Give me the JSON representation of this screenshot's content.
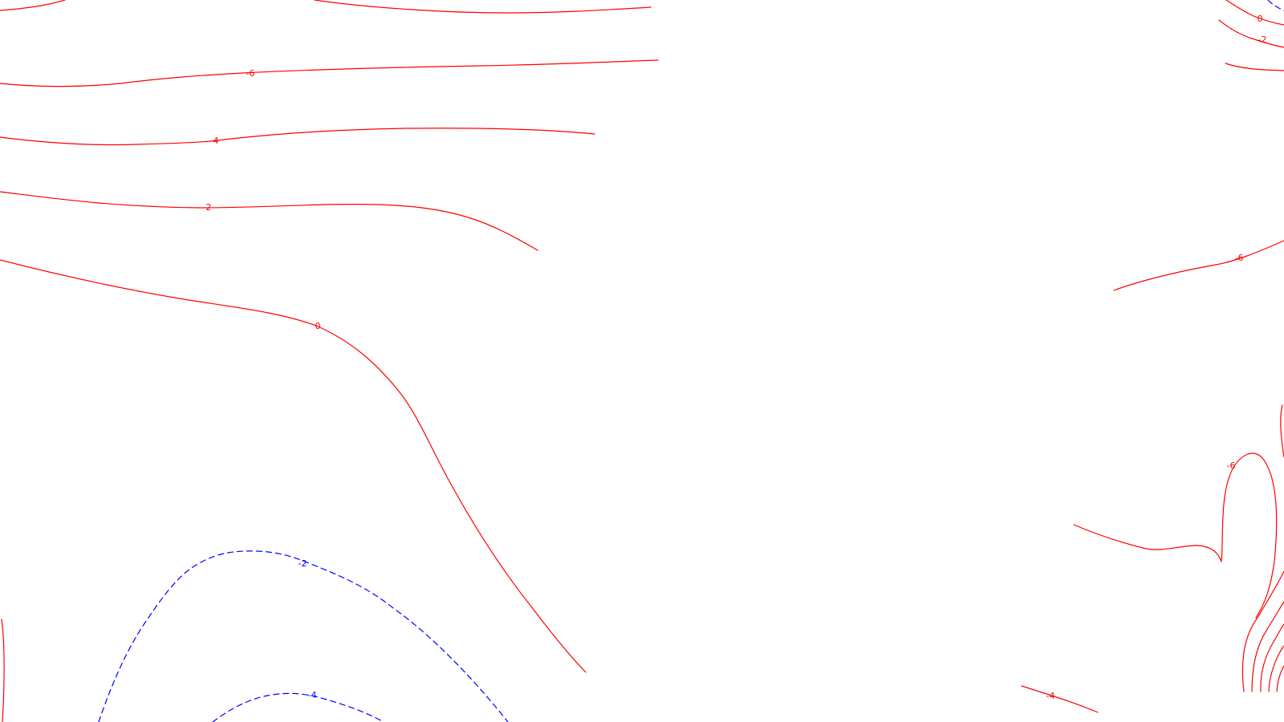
{
  "map": {
    "contour_style": {
      "solid_color": "#ff0000",
      "dashed_color": "#0000ff",
      "background": "#ffffff"
    },
    "labels": {
      "red_minus6_top": "-6",
      "red_minus4_top": "-4",
      "red_minus2_top": "-2",
      "red_zero_mid": "0",
      "red_zero_topright": "0",
      "red_minus2_topright": "-2",
      "red_minus6_right": "-6",
      "red_minus6_lower_right": "-6",
      "red_minus4_bottom_right": "-4",
      "blue_minus2_bottom_left": "-2",
      "blue_minus4_bottom_left": "-4"
    }
  }
}
